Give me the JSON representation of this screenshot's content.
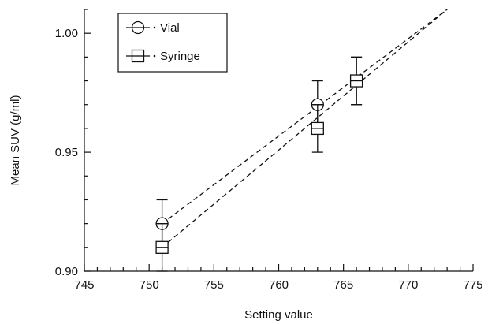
{
  "chart_data": {
    "type": "scatter",
    "xlabel": "Setting value",
    "ylabel": "Mean SUV (g/ml)",
    "xlim": [
      745,
      775
    ],
    "ylim": [
      0.9,
      1.01
    ],
    "x_ticks": [
      745,
      750,
      755,
      760,
      765,
      770,
      775
    ],
    "x_tick_labels": [
      "745",
      "750",
      "755",
      "760",
      "765",
      "770",
      "775"
    ],
    "y_ticks": [
      0.9,
      0.95,
      1.0
    ],
    "y_tick_labels": [
      "0.90",
      "0.95",
      "1.00"
    ],
    "grid": false,
    "legend_position": "top-left",
    "series": [
      {
        "name": "Vial",
        "marker": "circle",
        "x": [
          751,
          763,
          766
        ],
        "y": [
          0.92,
          0.97,
          0.98
        ],
        "error": [
          0.01,
          0.01,
          0.01
        ],
        "fit_line": {
          "style": "dashed",
          "x": [
            751,
            773
          ],
          "y": [
            0.92,
            1.01
          ]
        }
      },
      {
        "name": "Syringe",
        "marker": "square",
        "x": [
          751,
          763,
          766
        ],
        "y": [
          0.91,
          0.96,
          0.98
        ],
        "error": [
          0.01,
          0.01,
          0.01
        ],
        "fit_line": {
          "style": "dashed",
          "x": [
            751,
            773
          ],
          "y": [
            0.91,
            1.01
          ]
        }
      }
    ]
  }
}
